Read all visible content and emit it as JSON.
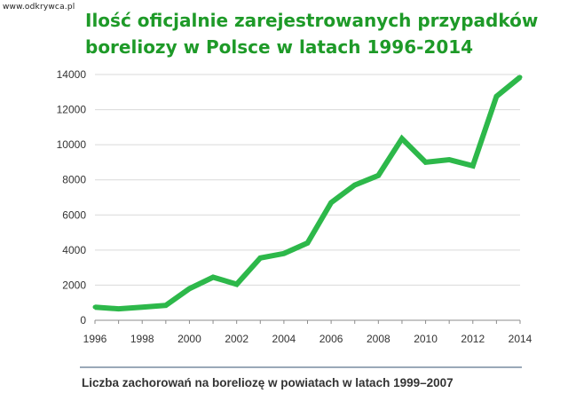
{
  "watermark": "www.odkrywca.pl",
  "title_lines": [
    "Ilość oficjalnie zarejestrowanych przypadków",
    "boreliozy w Polsce w latach 1996-2014"
  ],
  "caption": "Liczba zachorowań na boreliozę w powiatach w latach 1999–2007",
  "colors": {
    "line": "#2db84a",
    "title": "#1e9a28",
    "grid": "#d9d9d9",
    "caption_rule": "#9aa9b8"
  },
  "chart_data": {
    "type": "line",
    "title": "Ilość oficjalnie zarejestrowanych przypadków boreliozy w Polsce w latach 1996-2014",
    "xlabel": "",
    "ylabel": "",
    "x": [
      1996,
      1997,
      1998,
      1999,
      2000,
      2001,
      2002,
      2003,
      2004,
      2005,
      2006,
      2007,
      2008,
      2009,
      2010,
      2011,
      2012,
      2013,
      2014
    ],
    "series": [
      {
        "values": [
          750,
          650,
          750,
          850,
          1800,
          2450,
          2050,
          3550,
          3800,
          4400,
          6700,
          7700,
          8250,
          10350,
          9000,
          9150,
          8800,
          12750,
          13850
        ]
      }
    ],
    "xlim": [
      1996,
      2014
    ],
    "ylim": [
      0,
      14000
    ],
    "x_ticks": [
      "1996",
      "1998",
      "2000",
      "2002",
      "2004",
      "2006",
      "2008",
      "2010",
      "2012",
      "2014"
    ],
    "y_ticks": [
      "0",
      "2000",
      "4000",
      "6000",
      "8000",
      "10000",
      "12000",
      "14000"
    ],
    "grid": true,
    "legend": "none"
  }
}
